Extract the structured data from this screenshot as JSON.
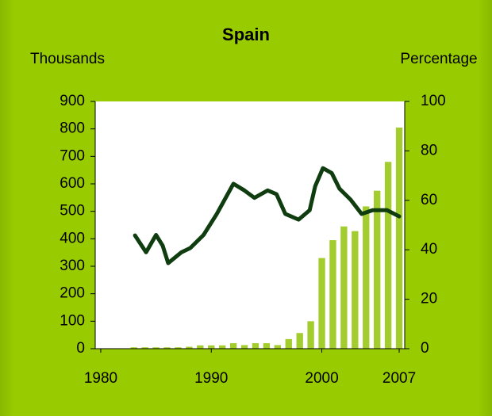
{
  "chart_data": {
    "type": "bar",
    "title": "Spain",
    "y_label": "Thousands",
    "y2_label": "Percentage",
    "x": [
      1983,
      1984,
      1985,
      1986,
      1987,
      1988,
      1989,
      1990,
      1991,
      1992,
      1993,
      1994,
      1995,
      1996,
      1997,
      1998,
      1999,
      2000,
      2001,
      2002,
      2003,
      2004,
      2005,
      2006,
      2007
    ],
    "series": [
      {
        "type": "bar",
        "color": "#a3cc2e",
        "values": [
          5,
          5,
          5,
          5,
          5,
          7,
          12,
          12,
          12,
          20,
          13,
          20,
          20,
          13,
          35,
          57,
          100,
          330,
          395,
          445,
          428,
          518,
          575,
          680,
          805
        ]
      },
      {
        "type": "line",
        "axis": "y2",
        "color": "#0f3d0f",
        "x": [
          1983.1,
          1984.1,
          1985.0,
          1985.6,
          1986.1,
          1987.3,
          1988.1,
          1989.3,
          1990.5,
          1992.0,
          1993.0,
          1993.9,
          1995.1,
          1995.9,
          1996.7,
          1997.9,
          1998.9,
          1999.4,
          2000.1,
          2000.9,
          2001.6,
          2002.6,
          2003.6,
          2004.6,
          2005.9,
          2007.0
        ],
        "values": [
          45.8,
          39,
          46,
          41.7,
          34.6,
          39,
          40.7,
          46,
          54.5,
          66.7,
          64,
          61,
          64,
          62.5,
          54.5,
          52.2,
          56,
          65.7,
          73,
          71,
          64.7,
          60.3,
          54.5,
          56,
          56,
          53.5
        ]
      }
    ],
    "xlim": [
      1979.5,
      2007.5
    ],
    "xticks": [
      1980,
      1990,
      2000,
      2007
    ],
    "ylim": [
      0,
      900
    ],
    "yticks": [
      0,
      100,
      200,
      300,
      400,
      500,
      600,
      700,
      800,
      900
    ],
    "y2lim": [
      0,
      100
    ],
    "y2ticks": [
      0,
      20,
      40,
      60,
      80,
      100
    ]
  }
}
